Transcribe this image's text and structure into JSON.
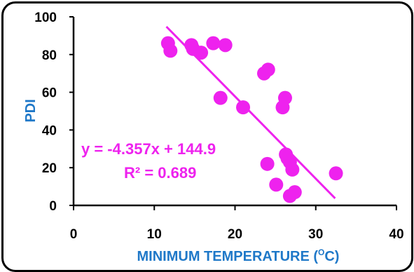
{
  "chart_data": {
    "type": "scatter",
    "xlabel": "MINIMUM TEMPERATURE (",
    "xlabel_sup": "O",
    "xlabel_suffix": "C)",
    "ylabel": "PDI",
    "xlim": [
      0,
      40
    ],
    "ylim": [
      0,
      100
    ],
    "x_ticks": [
      "0",
      "10",
      "20",
      "30",
      "40"
    ],
    "y_ticks": [
      "0",
      "20",
      "40",
      "60",
      "80",
      "100"
    ],
    "grid": false,
    "marker_color": "#ee22ee",
    "points": [
      {
        "x": 11.7,
        "y": 86
      },
      {
        "x": 12.0,
        "y": 82
      },
      {
        "x": 14.6,
        "y": 85
      },
      {
        "x": 14.8,
        "y": 83
      },
      {
        "x": 15.8,
        "y": 81
      },
      {
        "x": 17.3,
        "y": 86
      },
      {
        "x": 18.8,
        "y": 85
      },
      {
        "x": 18.2,
        "y": 57
      },
      {
        "x": 21.0,
        "y": 52
      },
      {
        "x": 23.6,
        "y": 70
      },
      {
        "x": 24.1,
        "y": 72
      },
      {
        "x": 26.2,
        "y": 57
      },
      {
        "x": 25.9,
        "y": 52
      },
      {
        "x": 26.3,
        "y": 27
      },
      {
        "x": 26.5,
        "y": 25
      },
      {
        "x": 26.8,
        "y": 23
      },
      {
        "x": 27.1,
        "y": 19
      },
      {
        "x": 24.0,
        "y": 22
      },
      {
        "x": 25.1,
        "y": 11
      },
      {
        "x": 27.4,
        "y": 7
      },
      {
        "x": 26.8,
        "y": 5
      },
      {
        "x": 32.5,
        "y": 17
      }
    ],
    "trendline": {
      "slope": -4.357,
      "intercept": 144.9,
      "x_from": 11.5,
      "x_to": 32.4
    },
    "equation": "y = -4.357x + 144.9",
    "r_squared": "R² = 0.689"
  }
}
